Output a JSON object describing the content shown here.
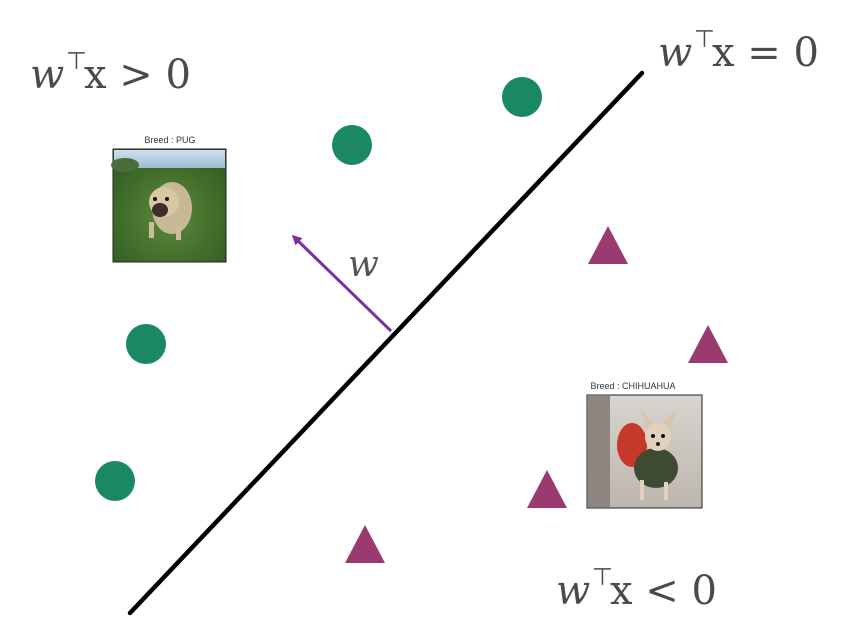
{
  "labels": {
    "boundary_lhs": "w",
    "boundary_sup": "⊤",
    "boundary_rhs": "x = 0",
    "positive_lhs": "w",
    "positive_sup": "⊤",
    "positive_rhs": "x > 0",
    "negative_lhs": "w",
    "negative_sup": "⊤",
    "negative_rhs": "x < 0",
    "weight_vector": "w"
  },
  "images": {
    "pug_caption": "Breed : PUG",
    "chihuahua_caption": "Breed : CHIHUAHUA"
  },
  "colors": {
    "positive_class": "#1a8765",
    "negative_class": "#9b3a6e",
    "weight_vector": "#7a2fa0",
    "boundary": "#000000"
  }
}
